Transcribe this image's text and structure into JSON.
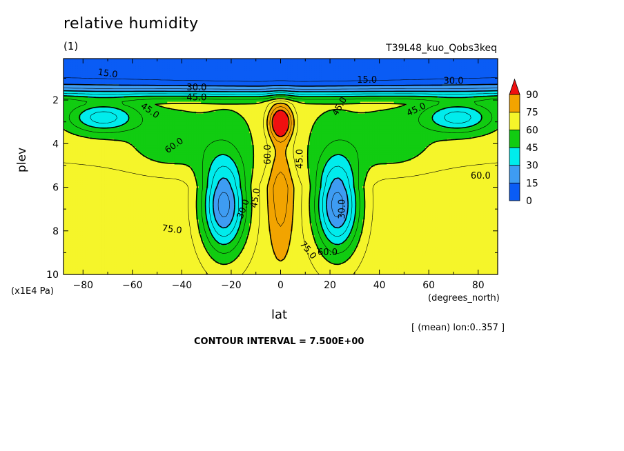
{
  "chart_data": {
    "type": "heatmap",
    "title": "relative humidity",
    "subtitle": "(1)",
    "run_name": "T39L48_kuo_Qobs3keq",
    "xlabel": "lat",
    "xunit": "(degrees_north)",
    "ylabel": "plev",
    "yunit": "(x1E4 Pa)",
    "mean_note": "[ (mean) lon:0..357 ]",
    "contour_interval": "CONTOUR INTERVAL = 7.500E+00",
    "xlim": [
      -87.9,
      87.9
    ],
    "ylim": [
      10,
      0.1
    ],
    "x_ticks": [
      -80,
      -60,
      -40,
      -20,
      0,
      20,
      40,
      60,
      80
    ],
    "y_ticks": [
      2,
      4,
      6,
      8,
      10
    ],
    "colorbar": {
      "levels": [
        0,
        15,
        30,
        45,
        60,
        75,
        90
      ],
      "colors": [
        "#0a5cf5",
        "#3e9cf2",
        "#00ecec",
        "#11cc11",
        "#f5f52a",
        "#f2a400",
        "#f01010"
      ],
      "extend": "max"
    },
    "contour_labels": [
      {
        "text": "15.0",
        "x": -70,
        "y": 0.8,
        "rotate": 8
      },
      {
        "text": "30.0",
        "x": -34,
        "y": 1.45,
        "rotate": 0
      },
      {
        "text": "45.0",
        "x": -34,
        "y": 1.9,
        "rotate": 0
      },
      {
        "text": "45.0",
        "x": -53,
        "y": 2.5,
        "rotate": 35
      },
      {
        "text": "60.0",
        "x": -43,
        "y": 4.1,
        "rotate": -35
      },
      {
        "text": "75.0",
        "x": -44,
        "y": 7.95,
        "rotate": 8
      },
      {
        "text": "30.0",
        "x": -15,
        "y": 7.0,
        "rotate": -70
      },
      {
        "text": "45.0",
        "x": -10,
        "y": 6.5,
        "rotate": -80
      },
      {
        "text": "60.0",
        "x": -5,
        "y": 4.5,
        "rotate": -90
      },
      {
        "text": "45.0",
        "x": 8,
        "y": 4.7,
        "rotate": -90
      },
      {
        "text": "45.0",
        "x": 24,
        "y": 2.3,
        "rotate": -60
      },
      {
        "text": "30.0",
        "x": 25,
        "y": 7.0,
        "rotate": -90
      },
      {
        "text": "75.0",
        "x": 11,
        "y": 8.9,
        "rotate": 50
      },
      {
        "text": "60.0",
        "x": 19,
        "y": 9.0,
        "rotate": 0
      },
      {
        "text": "15.0",
        "x": 35,
        "y": 1.1,
        "rotate": 0
      },
      {
        "text": "30.0",
        "x": 70,
        "y": 1.15,
        "rotate": 0
      },
      {
        "text": "45.0",
        "x": 55,
        "y": 2.45,
        "rotate": -25
      },
      {
        "text": "60.0",
        "x": 81,
        "y": 5.5,
        "rotate": 0
      }
    ]
  }
}
